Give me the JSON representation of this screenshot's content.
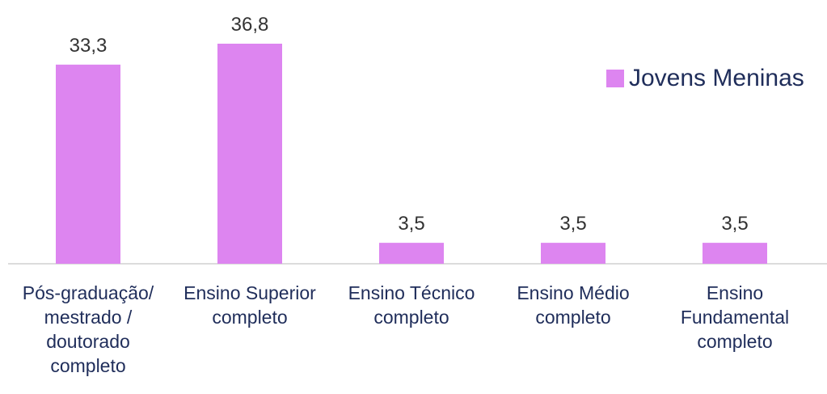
{
  "chart_data": {
    "type": "bar",
    "categories": [
      "Pós-graduação/ mestrado / doutorado completo",
      "Ensino Superior completo",
      "Ensino Técnico completo",
      "Ensino Médio completo",
      "Ensino Fundamental completo"
    ],
    "series": [
      {
        "name": "Jovens Meninas",
        "color": "#dd85f0",
        "values": [
          33.3,
          36.8,
          3.5,
          3.5,
          3.5
        ],
        "value_labels": [
          "33,3",
          "36,8",
          "3,5",
          "3,5",
          "3,5"
        ]
      }
    ],
    "legend": "top-right"
  }
}
